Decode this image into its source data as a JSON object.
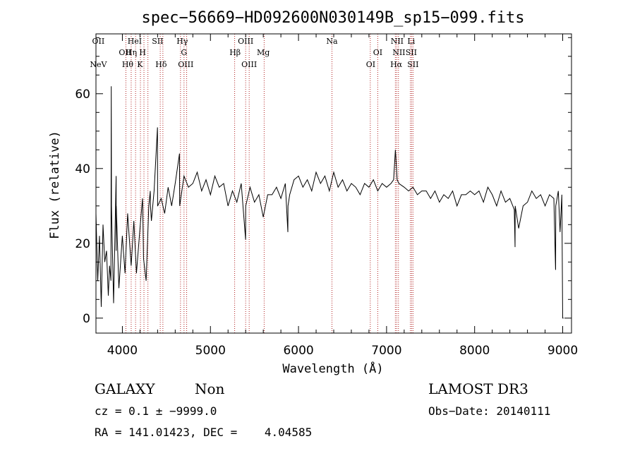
{
  "chart_data": {
    "type": "line",
    "title": "spec−56669−HD092600N030149B_sp15−099.fits",
    "xlabel": "Wavelength (Å)",
    "ylabel": "Flux (relative)",
    "xlim": [
      3700,
      9100
    ],
    "ylim": [
      -4,
      76
    ],
    "xticks": [
      4000,
      5000,
      6000,
      7000,
      8000,
      9000
    ],
    "yticks": [
      0,
      20,
      40,
      60
    ],
    "line_color": "#000000",
    "marker_color": "#b22222",
    "spectrum": {
      "x": [
        3700,
        3720,
        3740,
        3760,
        3780,
        3800,
        3820,
        3840,
        3855,
        3870,
        3885,
        3900,
        3930,
        3960,
        4000,
        4030,
        4060,
        4100,
        4130,
        4160,
        4200,
        4240,
        4270,
        4300,
        4330,
        4360,
        4400,
        4440,
        4480,
        4520,
        4560,
        4600,
        4650,
        4700,
        4750,
        4800,
        4850,
        4900,
        4950,
        5000,
        5050,
        5100,
        5150,
        5200,
        5250,
        5300,
        5350,
        5400,
        5450,
        5500,
        5550,
        5600,
        5650,
        5700,
        5750,
        5800,
        5850,
        5900,
        5950,
        6000,
        6050,
        6100,
        6150,
        6200,
        6250,
        6300,
        6350,
        6400,
        6450,
        6500,
        6550,
        6600,
        6650,
        6700,
        6750,
        6800,
        6850,
        6900,
        6950,
        7000,
        7050,
        7080,
        7100,
        7120,
        7140,
        7200,
        7250,
        7300,
        7350,
        7400,
        7450,
        7500,
        7550,
        7600,
        7650,
        7700,
        7750,
        7800,
        7850,
        7900,
        7950,
        8000,
        8050,
        8100,
        8150,
        8200,
        8250,
        8300,
        8350,
        8400,
        8450,
        8500,
        8550,
        8600,
        8650,
        8700,
        8750,
        8800,
        8850,
        8900,
        8920,
        8950,
        8970,
        8990,
        9000,
        9010
      ],
      "y": [
        28,
        10,
        22,
        3,
        25,
        15,
        18,
        6,
        14,
        10,
        20,
        4,
        18,
        8,
        22,
        12,
        28,
        14,
        26,
        12,
        24,
        16,
        10,
        30,
        26,
        34,
        30,
        32,
        28,
        35,
        30,
        36,
        33,
        38,
        35,
        36,
        39,
        34,
        37,
        33,
        38,
        35,
        36,
        30,
        34,
        31,
        36,
        29,
        35,
        31,
        33,
        27,
        33,
        33,
        35,
        32,
        36,
        33,
        37,
        38,
        35,
        37,
        34,
        39,
        36,
        38,
        34,
        39,
        35,
        37,
        34,
        36,
        35,
        33,
        36,
        35,
        37,
        34,
        36,
        35,
        36,
        37,
        45,
        37,
        36,
        35,
        34,
        35,
        33,
        34,
        34,
        32,
        34,
        31,
        33,
        32,
        34,
        30,
        33,
        33,
        34,
        33,
        34,
        31,
        35,
        33,
        30,
        34,
        31,
        32,
        29,
        24,
        30,
        31,
        34,
        32,
        33,
        30,
        33,
        32,
        13,
        34,
        23,
        33,
        0,
        0
      ],
      "spikes": [
        {
          "x": 3875,
          "y": 62
        },
        {
          "x": 3930,
          "y": 38
        },
        {
          "x": 4230,
          "y": 32
        },
        {
          "x": 4318,
          "y": 34
        },
        {
          "x": 4400,
          "y": 51
        },
        {
          "x": 4650,
          "y": 44
        },
        {
          "x": 5400,
          "y": 21
        },
        {
          "x": 5880,
          "y": 23
        },
        {
          "x": 8460,
          "y": 19
        },
        {
          "x": 8920,
          "y": 13
        }
      ]
    },
    "lines": [
      {
        "label": "NeV",
        "x": 3727,
        "row": 3
      },
      {
        "label": "OII",
        "x": 3727,
        "row": 1
      },
      {
        "label": "OII",
        "x": 4030,
        "row": 2
      },
      {
        "label": "Hθ",
        "x": 4060,
        "row": 3
      },
      {
        "label": "Hη",
        "x": 4101,
        "row": 2
      },
      {
        "label": "HeI",
        "x": 4140,
        "row": 1
      },
      {
        "label": "K",
        "x": 4200,
        "row": 3
      },
      {
        "label": "H",
        "x": 4230,
        "row": 2
      },
      {
        "label": "SII",
        "x": 4400,
        "row": 1
      },
      {
        "label": "Hδ",
        "x": 4440,
        "row": 3
      },
      {
        "label": "Hγ",
        "x": 4680,
        "row": 1
      },
      {
        "label": "G",
        "x": 4700,
        "row": 2
      },
      {
        "label": "OIII",
        "x": 4720,
        "row": 3
      },
      {
        "label": "Hβ",
        "x": 5280,
        "row": 2
      },
      {
        "label": "OIII",
        "x": 5400,
        "row": 1
      },
      {
        "label": "OIII",
        "x": 5440,
        "row": 3
      },
      {
        "label": "Mg",
        "x": 5600,
        "row": 2
      },
      {
        "label": "Na",
        "x": 6380,
        "row": 1
      },
      {
        "label": "OI",
        "x": 6820,
        "row": 3
      },
      {
        "label": "OI",
        "x": 6900,
        "row": 2
      },
      {
        "label": "NII",
        "x": 7120,
        "row": 1
      },
      {
        "label": "NII",
        "x": 7140,
        "row": 2
      },
      {
        "label": "Hα",
        "x": 7110,
        "row": 3
      },
      {
        "label": "Li",
        "x": 7280,
        "row": 1
      },
      {
        "label": "SII",
        "x": 7280,
        "row": 2
      },
      {
        "label": "SII",
        "x": 7300,
        "row": 3
      }
    ],
    "marker_x": [
      4040,
      4100,
      4150,
      4205,
      4245,
      4290,
      4430,
      4460,
      4660,
      4700,
      4730,
      5275,
      5400,
      5440,
      5610,
      6380,
      6815,
      6900,
      7100,
      7115,
      7135,
      7270,
      7285,
      7300
    ]
  },
  "info": {
    "object_class": "GALAXY",
    "subclass": "Non",
    "survey": "LAMOST DR3",
    "cz_line": "cz = 0.1 ± −9999.0",
    "obs_date": "Obs−Date: 20140111",
    "coords": "RA = 141.01423, DEC =    4.04585"
  }
}
